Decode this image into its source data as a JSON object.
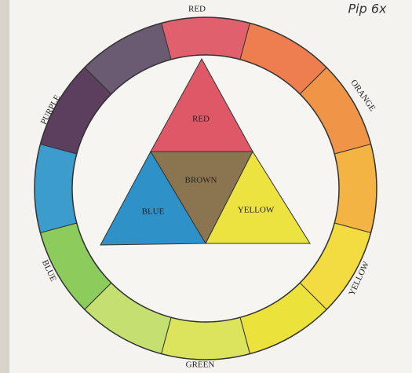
{
  "note": "Pip 6x",
  "wheel_labels": [
    "RED",
    "ORANGE",
    "YELLOW",
    "GREEN",
    "BLUE",
    "PURPLE"
  ],
  "triangle": {
    "top": "RED",
    "center": "BROWN",
    "left": "BLUE",
    "right": "YELLOW"
  }
}
